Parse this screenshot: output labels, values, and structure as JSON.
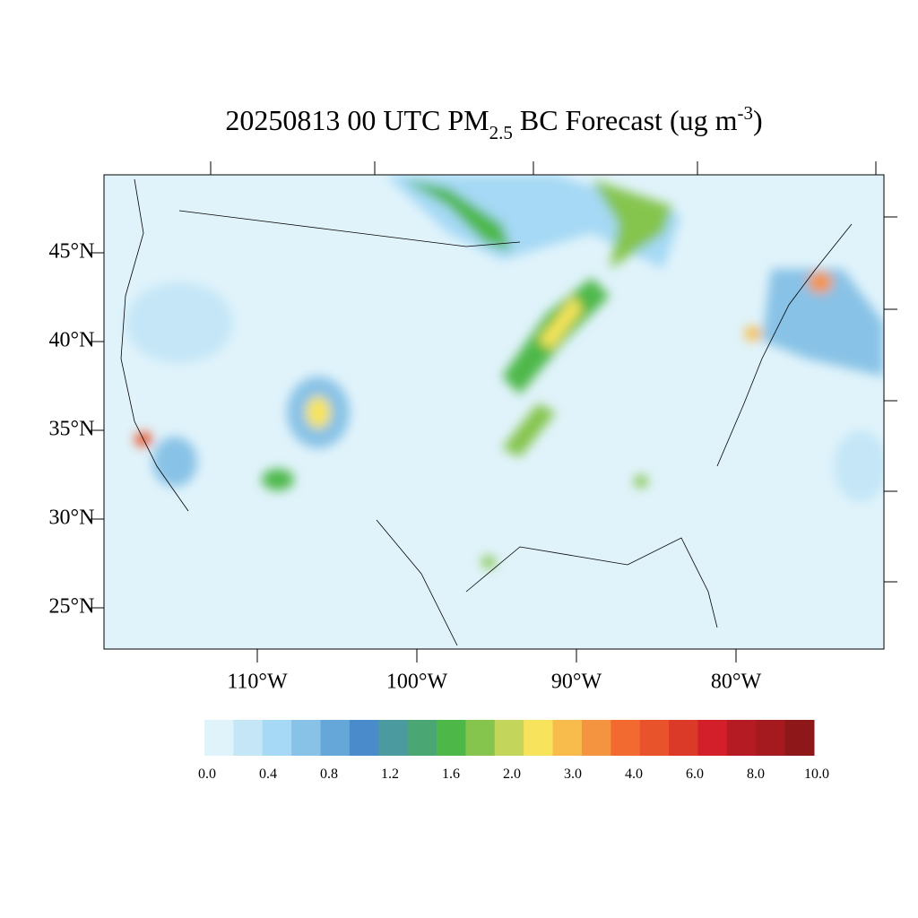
{
  "title": {
    "main": "20250813 00 UTC PM",
    "sub": "2.5",
    "rest": " BC Forecast (ug m",
    "sup": "-3",
    "end": ")"
  },
  "lat_labels": [
    "45°N",
    "40°N",
    "35°N",
    "30°N",
    "25°N"
  ],
  "lon_labels": [
    "110°W",
    "100°W",
    "90°W",
    "80°W"
  ],
  "colorbar": {
    "labels": [
      "0.0",
      "0.4",
      "0.8",
      "1.2",
      "1.6",
      "2.0",
      "3.0",
      "4.0",
      "6.0",
      "8.0",
      "10.0"
    ],
    "colors": [
      "#e0f3fb",
      "#c4e6f7",
      "#a6d9f5",
      "#88c2e6",
      "#66a7da",
      "#4a8ccb",
      "#4a9aa0",
      "#4aa673",
      "#4db848",
      "#85c54e",
      "#c3d55a",
      "#f7e45c",
      "#f7bc4b",
      "#f59440",
      "#f26a2f",
      "#e8532b",
      "#dc3a28",
      "#d21f2a",
      "#b51b23",
      "#a51a1f",
      "#8e171a"
    ]
  }
}
